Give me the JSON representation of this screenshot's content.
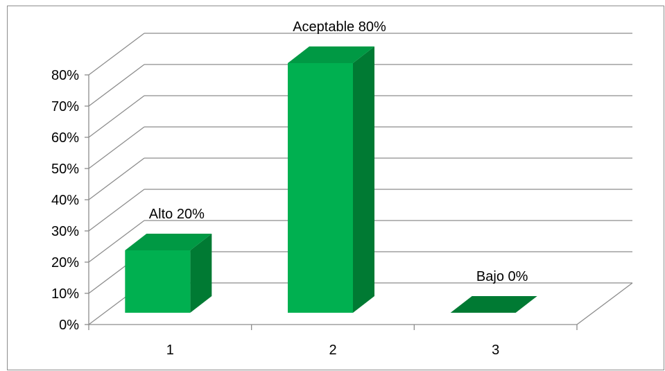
{
  "chart_data": {
    "type": "bar",
    "style": "3d-column",
    "categories": [
      "1",
      "2",
      "3"
    ],
    "values": [
      20,
      80,
      0
    ],
    "unit": "%",
    "data_labels": [
      "Alto 20%",
      "Aceptable 80%",
      "Bajo 0%"
    ],
    "title": "",
    "xlabel": "",
    "ylabel": "",
    "ylim": [
      0,
      80
    ],
    "yticks": [
      "0%",
      "10%",
      "20%",
      "30%",
      "40%",
      "50%",
      "60%",
      "70%",
      "80%"
    ],
    "grid": true,
    "legend": "none",
    "colors": {
      "bar_front": "#00b050",
      "bar_side": "#007a33",
      "bar_top": "#009944",
      "grid": "#8c8c8c",
      "axis": "#8c8c8c"
    }
  }
}
